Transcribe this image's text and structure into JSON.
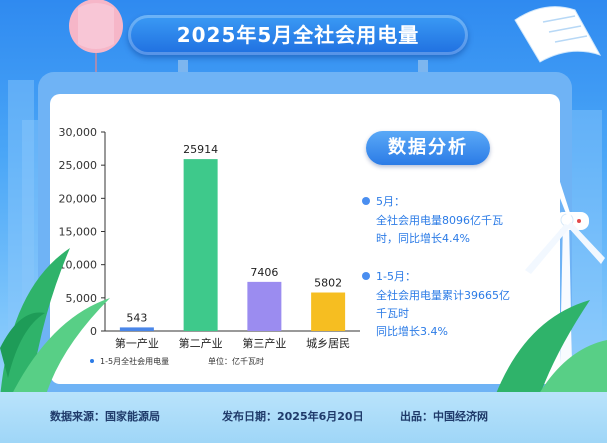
{
  "title": "2025年5月全社会用电量",
  "analysis": {
    "heading": "数据分析",
    "notes": [
      {
        "label": "5月：",
        "lines": [
          "全社会用电量8096亿千瓦",
          "时，同比增长4.4%"
        ]
      },
      {
        "label": "1-5月：",
        "lines": [
          "全社会用电量累计39665亿",
          "千瓦时",
          "同比增长3.4%"
        ]
      }
    ]
  },
  "legend": {
    "series_label": "1-5月全社会用电量",
    "unit": "单位：亿千瓦时"
  },
  "footer": {
    "source": "数据来源：国家能源局",
    "date": "发布日期：2025年6月20日",
    "publisher": "出品：中国经济网"
  },
  "colors": {
    "bar1": "#4a86e8",
    "bar2": "#3ec98b",
    "bar3": "#9b8cf0",
    "bar4": "#f6be21",
    "accent": "#2b7be6"
  },
  "chart_data": {
    "type": "bar",
    "title": "",
    "xlabel": "",
    "ylabel": "",
    "categories": [
      "第一产业",
      "第二产业",
      "第三产业",
      "城乡居民"
    ],
    "values": [
      543,
      25914,
      7406,
      5802
    ],
    "value_labels": [
      "543",
      "25914",
      "7406",
      "5802"
    ],
    "ylim": [
      0,
      30000
    ],
    "yticks": [
      0,
      5000,
      10000,
      15000,
      20000,
      25000,
      30000
    ],
    "ytick_labels": [
      "0",
      "5,000",
      "10,000",
      "15,000",
      "20,000",
      "25,000",
      "30,000"
    ],
    "grid": false,
    "legend_position": "bottom-left"
  }
}
